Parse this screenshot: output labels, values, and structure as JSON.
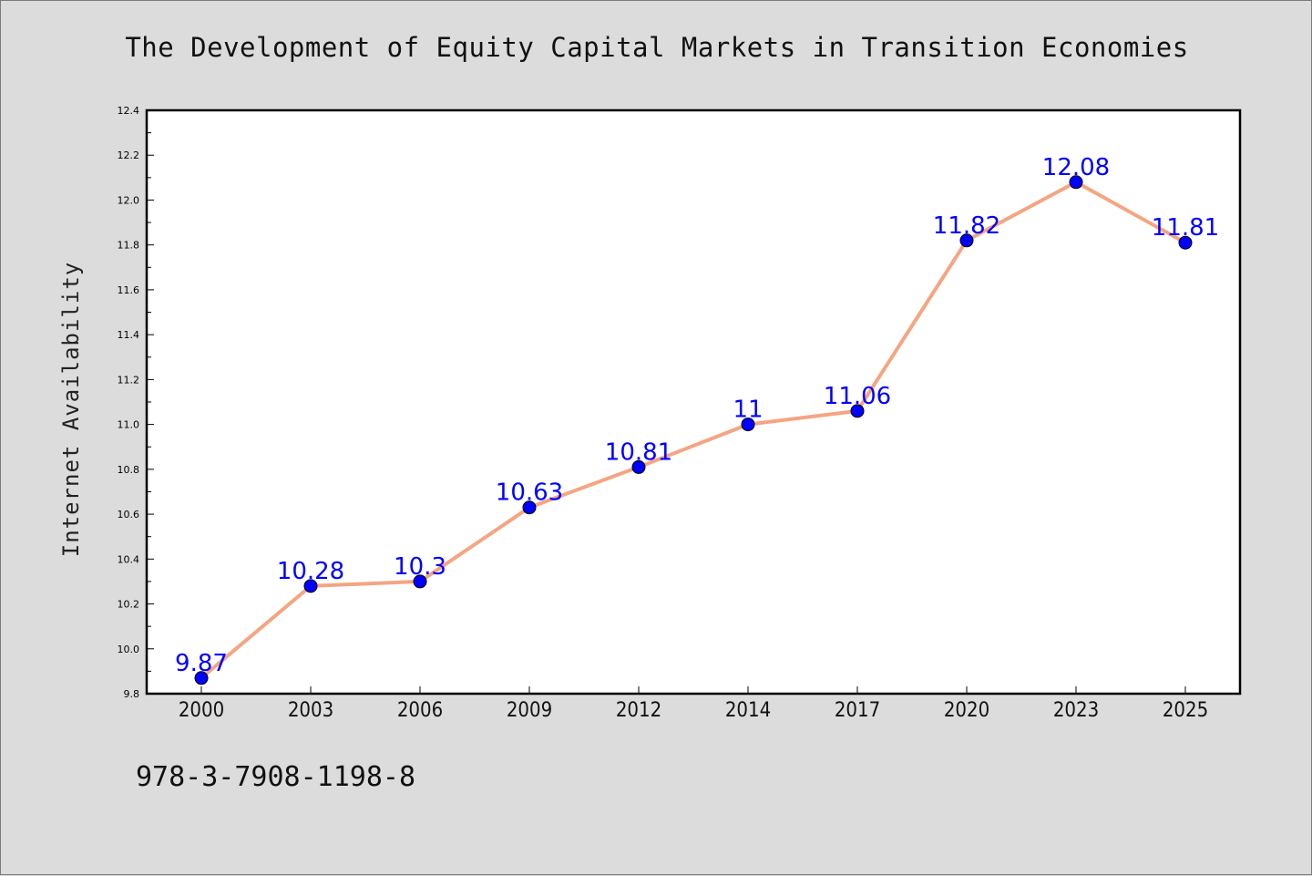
{
  "chart_data": {
    "type": "line",
    "title": "The Development of Equity Capital Markets in Transition Economies",
    "ylabel": "Internet Availability",
    "xlabel": "",
    "categories": [
      "2000",
      "2003",
      "2006",
      "2009",
      "2012",
      "2014",
      "2017",
      "2020",
      "2023",
      "2025"
    ],
    "series": [
      {
        "values": [
          9.87,
          10.28,
          10.3,
          10.63,
          10.81,
          11,
          11.06,
          11.82,
          12.08,
          11.81
        ],
        "data_labels": [
          "9.87",
          "10.28",
          "10.3",
          "10.63",
          "10.81",
          "11",
          "11.06",
          "11.82",
          "12.08",
          "11.81"
        ],
        "line_color": "#f4a582",
        "marker_color": "#0000ff",
        "label_color": "#0000ff"
      }
    ],
    "ylim": [
      9.8,
      12.4
    ],
    "yticks": [
      "9.8",
      "10.0",
      "10.2",
      "10.4",
      "10.6",
      "10.8",
      "11.0",
      "11.2",
      "11.4",
      "11.6",
      "11.8",
      "12.0",
      "12.2",
      "12.4"
    ],
    "grid": false,
    "legend": "none"
  },
  "footer": {
    "isbn": "978-3-7908-1198-8"
  },
  "colors": {
    "background": "#dcdcdc",
    "plot_area": "#ffffff"
  }
}
